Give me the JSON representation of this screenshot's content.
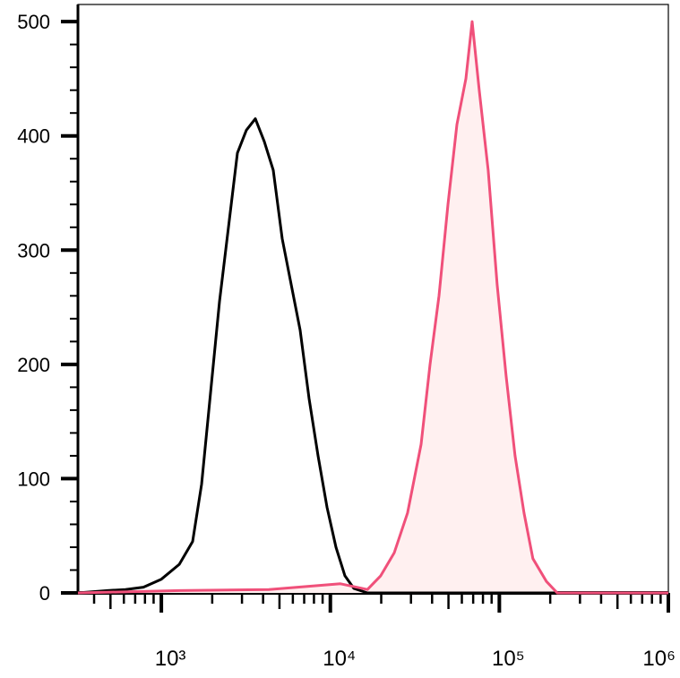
{
  "chart_data": {
    "type": "histogram-line",
    "xscale": "log",
    "xlim": [
      321,
      1000000
    ],
    "ylim": [
      0,
      515
    ],
    "xticks": [
      {
        "value": 1000,
        "label": "10³"
      },
      {
        "value": 10000,
        "label": "10⁴"
      },
      {
        "value": 100000,
        "label": "10⁵"
      },
      {
        "value": 1000000,
        "label": "10⁶"
      }
    ],
    "yticks": [
      0,
      100,
      200,
      300,
      400,
      500
    ],
    "series": [
      {
        "color": "#000000",
        "x": [
          321,
          481,
          614,
          783,
          1000,
          1276,
          1531,
          1730,
          1954,
          2208,
          2495,
          2818,
          3184,
          3597,
          4064,
          4592,
          5188,
          5861,
          6622,
          7482,
          8453,
          9550,
          10790,
          12190,
          13770,
          16560,
          1000000
        ],
        "values": [
          0,
          2,
          3,
          5,
          12,
          25,
          45,
          95,
          175,
          255,
          320,
          385,
          405,
          415,
          395,
          370,
          310,
          270,
          230,
          170,
          120,
          75,
          40,
          15,
          4,
          0,
          0
        ]
      },
      {
        "color": "#f0507a",
        "fill": "#fff0f0",
        "x": [
          321,
          1276,
          4325,
          11480,
          16560,
          19860,
          23880,
          28640,
          34440,
          38900,
          43950,
          49660,
          56100,
          63390,
          69020,
          76000,
          85900,
          97000,
          109600,
          123900,
          140000,
          158000,
          190000,
          220000,
          1000000
        ],
        "values": [
          0,
          2,
          3,
          8,
          3,
          15,
          35,
          70,
          130,
          200,
          260,
          340,
          410,
          450,
          500,
          440,
          370,
          270,
          190,
          120,
          70,
          30,
          10,
          0,
          0
        ]
      }
    ]
  }
}
